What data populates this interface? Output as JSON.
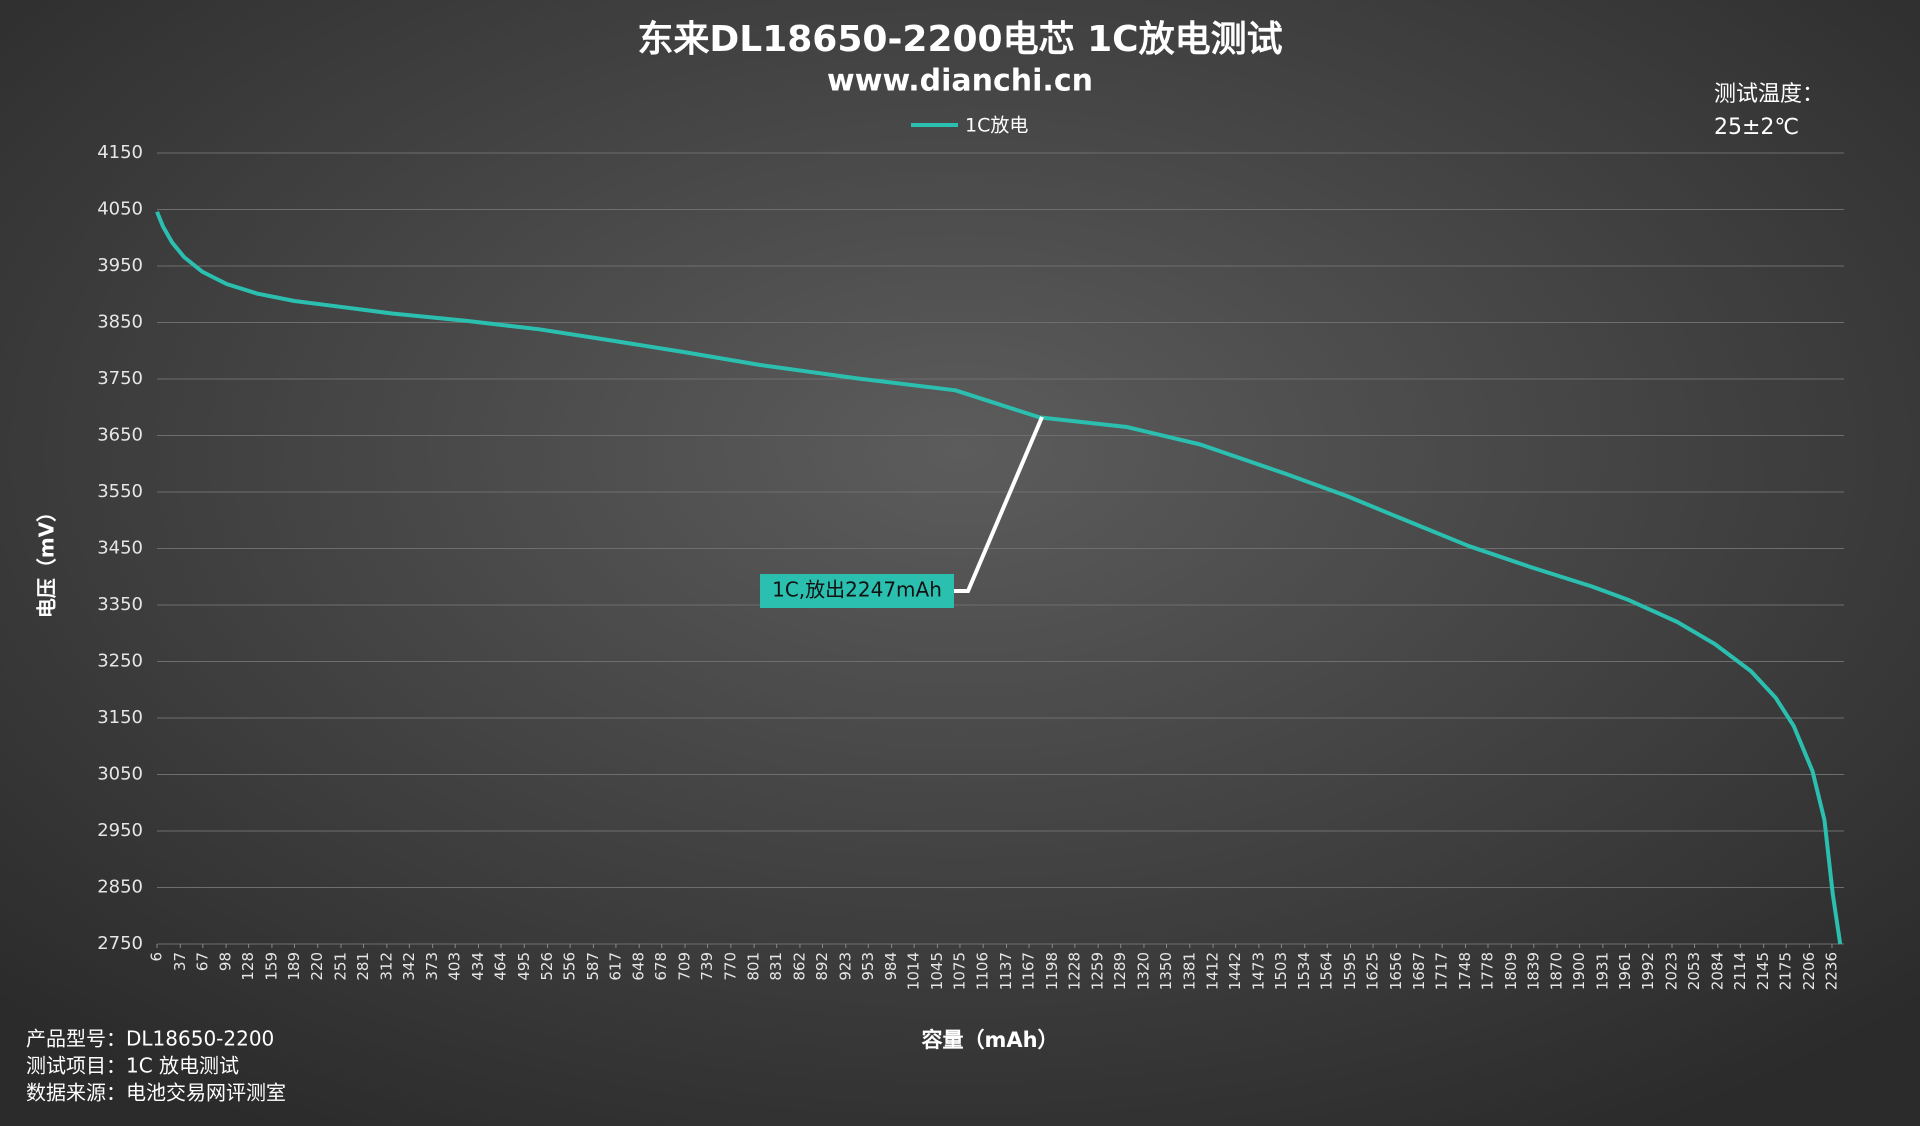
{
  "chart_data": {
    "type": "line",
    "title": "东来DL18650-2200电芯 1C放电测试",
    "subtitle": "www.dianchi.cn",
    "x_label": "容量（mAh）",
    "y_label": "电压（mV）",
    "temperature_note": [
      "测试温度：",
      "25±2℃"
    ],
    "annotation": "1C,放出2247mAh",
    "notes": [
      "产品型号：DL18650-2200",
      "测试项目：1C 放电测试",
      "数据来源：电池交易网评测室"
    ],
    "x": [
      6,
      14,
      26,
      42,
      66,
      99,
      140,
      189,
      254,
      319,
      417,
      515,
      612,
      710,
      808,
      938,
      1069,
      1181,
      1297,
      1395,
      1509,
      1590,
      1672,
      1753,
      1835,
      1916,
      1965,
      2030,
      2080,
      2128,
      2161,
      2185,
      2210,
      2226,
      2237,
      2247
    ],
    "series": [
      {
        "name": "1C放电",
        "color": "#2bbfb0",
        "values": [
          4046,
          4020,
          3992,
          3966,
          3940,
          3918,
          3901,
          3888,
          3877,
          3866,
          3853,
          3838,
          3818,
          3797,
          3775,
          3751,
          3730,
          3682,
          3665,
          3634,
          3582,
          3543,
          3498,
          3454,
          3417,
          3383,
          3359,
          3320,
          3281,
          3233,
          3186,
          3136,
          3056,
          2969,
          2839,
          2750
        ]
      }
    ],
    "xlim": [
      6,
      2252
    ],
    "xticks": [
      6,
      37,
      67,
      98,
      128,
      159,
      189,
      220,
      251,
      281,
      312,
      342,
      373,
      403,
      434,
      464,
      495,
      526,
      556,
      587,
      617,
      648,
      678,
      709,
      739,
      770,
      801,
      831,
      862,
      892,
      923,
      953,
      984,
      1014,
      1045,
      1075,
      1106,
      1137,
      1167,
      1198,
      1228,
      1259,
      1289,
      1320,
      1350,
      1381,
      1412,
      1442,
      1473,
      1503,
      1534,
      1564,
      1595,
      1625,
      1656,
      1687,
      1717,
      1748,
      1778,
      1809,
      1839,
      1870,
      1900,
      1931,
      1961,
      1992,
      2023,
      2053,
      2084,
      2114,
      2145,
      2175,
      2206,
      2236
    ],
    "ylim": [
      2750,
      4150
    ],
    "yticks": [
      2750,
      2850,
      2950,
      3050,
      3150,
      3250,
      3350,
      3450,
      3550,
      3650,
      3750,
      3850,
      3950,
      4050,
      4150
    ],
    "grid": true
  }
}
